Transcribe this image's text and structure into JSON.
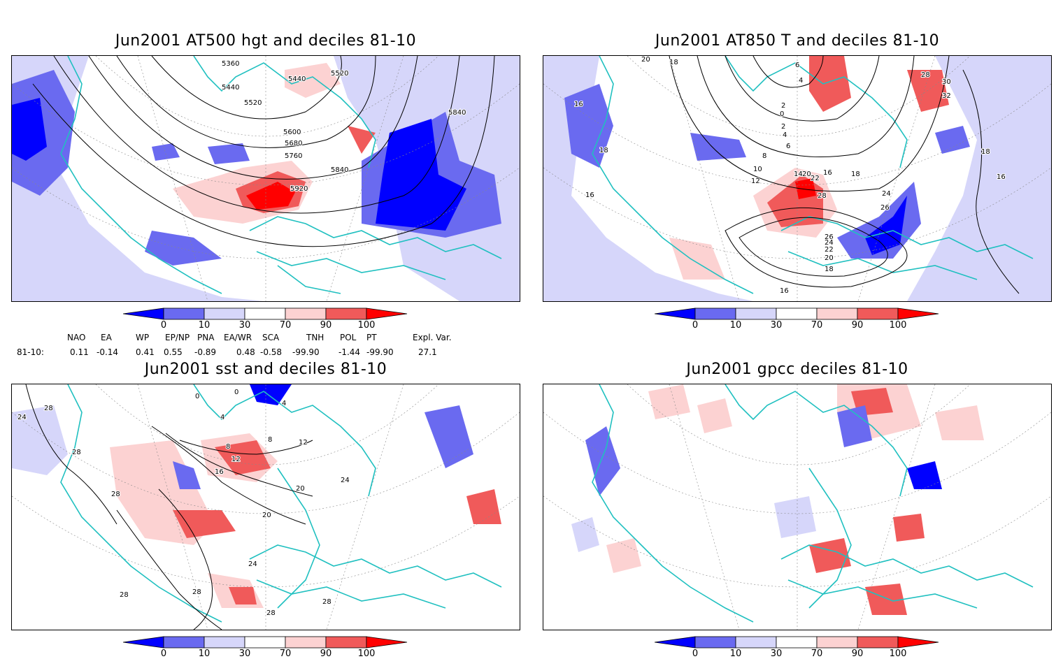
{
  "panels": [
    {
      "id": "hgt",
      "title": "Jun2001 AT500 hgt and deciles 81-10",
      "contour_labels": [
        "5360",
        "5440",
        "5440",
        "5520",
        "5520",
        "5600",
        "5680",
        "5760",
        "5840",
        "5840",
        "5920"
      ]
    },
    {
      "id": "t850",
      "title": "Jun2001 AT850 T and deciles 81-10",
      "contour_labels": [
        "20",
        "18",
        "16",
        "18",
        "16",
        "6",
        "4",
        "2",
        "0",
        "2",
        "4",
        "6",
        "8",
        "10",
        "12",
        "14",
        "16",
        "18",
        "20",
        "22",
        "28",
        "24",
        "26",
        "26",
        "24",
        "22",
        "20",
        "18",
        "16",
        "16",
        "18",
        "28",
        "30",
        "32"
      ]
    },
    {
      "id": "sst",
      "title": "Jun2001 sst and deciles 81-10",
      "contour_labels": [
        "24",
        "28",
        "28",
        "28",
        "28",
        "0",
        "0",
        "4",
        "4",
        "8",
        "8",
        "12",
        "12",
        "16",
        "20",
        "20",
        "24",
        "24",
        "28",
        "28",
        "28"
      ]
    },
    {
      "id": "gpcc",
      "title": "Jun2001 gpcc deciles 81-10",
      "contour_labels": []
    }
  ],
  "colorbar": {
    "labels": [
      "0",
      "10",
      "30",
      "70",
      "90",
      "100"
    ],
    "colors": [
      "#0000ff",
      "#6a6af0",
      "#d6d6fa",
      "#ffffff",
      "#fcd2d2",
      "#f05a5a",
      "#ff0000"
    ]
  },
  "teleconnections": {
    "row_label": "81-10:",
    "headers": [
      "NAO",
      "EA",
      "WP",
      "EP/NP",
      "PNA",
      "EA/WR",
      "SCA",
      "TNH",
      "POL",
      "PT",
      "Expl. Var."
    ],
    "values": [
      "0.11",
      "-0.14",
      "0.41",
      "0.55",
      "-0.89",
      "0.48",
      "-0.58",
      "-99.90",
      "-1.44",
      "-99.90",
      "27.1"
    ]
  },
  "colors": {
    "coast": "#20c0c0",
    "contour": "#000000",
    "grid": "#888888"
  }
}
